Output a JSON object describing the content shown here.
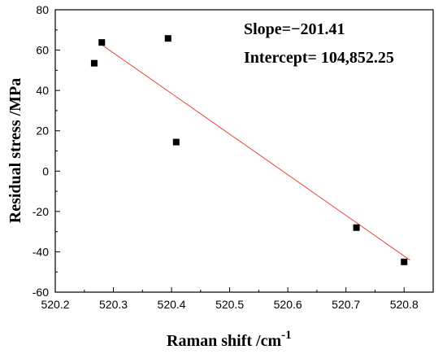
{
  "chart_data": {
    "type": "scatter",
    "xlabel": "Raman shift  /cm",
    "xlabel_sup": "-1",
    "ylabel": "Residual stress  /MPa",
    "xlim": [
      520.2,
      520.85
    ],
    "ylim": [
      -60,
      80
    ],
    "x_ticks": [
      520.2,
      520.3,
      520.4,
      520.5,
      520.6,
      520.7,
      520.8
    ],
    "x_tick_labels": [
      "520.2",
      "520.3",
      "520.4",
      "520.5",
      "520.6",
      "520.7",
      "520.8"
    ],
    "y_ticks": [
      -60,
      -40,
      -20,
      0,
      20,
      40,
      60,
      80
    ],
    "y_tick_labels": [
      "-60",
      "-40",
      "-20",
      "0",
      "20",
      "40",
      "60",
      "80"
    ],
    "grid": false,
    "points": [
      {
        "x": 520.267,
        "y": 53.5
      },
      {
        "x": 520.28,
        "y": 63.8
      },
      {
        "x": 520.394,
        "y": 65.8
      },
      {
        "x": 520.408,
        "y": 14.4
      },
      {
        "x": 520.718,
        "y": -28.0
      },
      {
        "x": 520.8,
        "y": -45.0
      }
    ],
    "fit_line": {
      "slope": -201.41,
      "intercept": 104852.25,
      "x_range": [
        520.275,
        520.81
      ],
      "color": "#e8483f"
    },
    "marker_color": "#000000",
    "annotations": [
      "Slope=−201.41",
      "Intercept= 104,852.25"
    ]
  }
}
